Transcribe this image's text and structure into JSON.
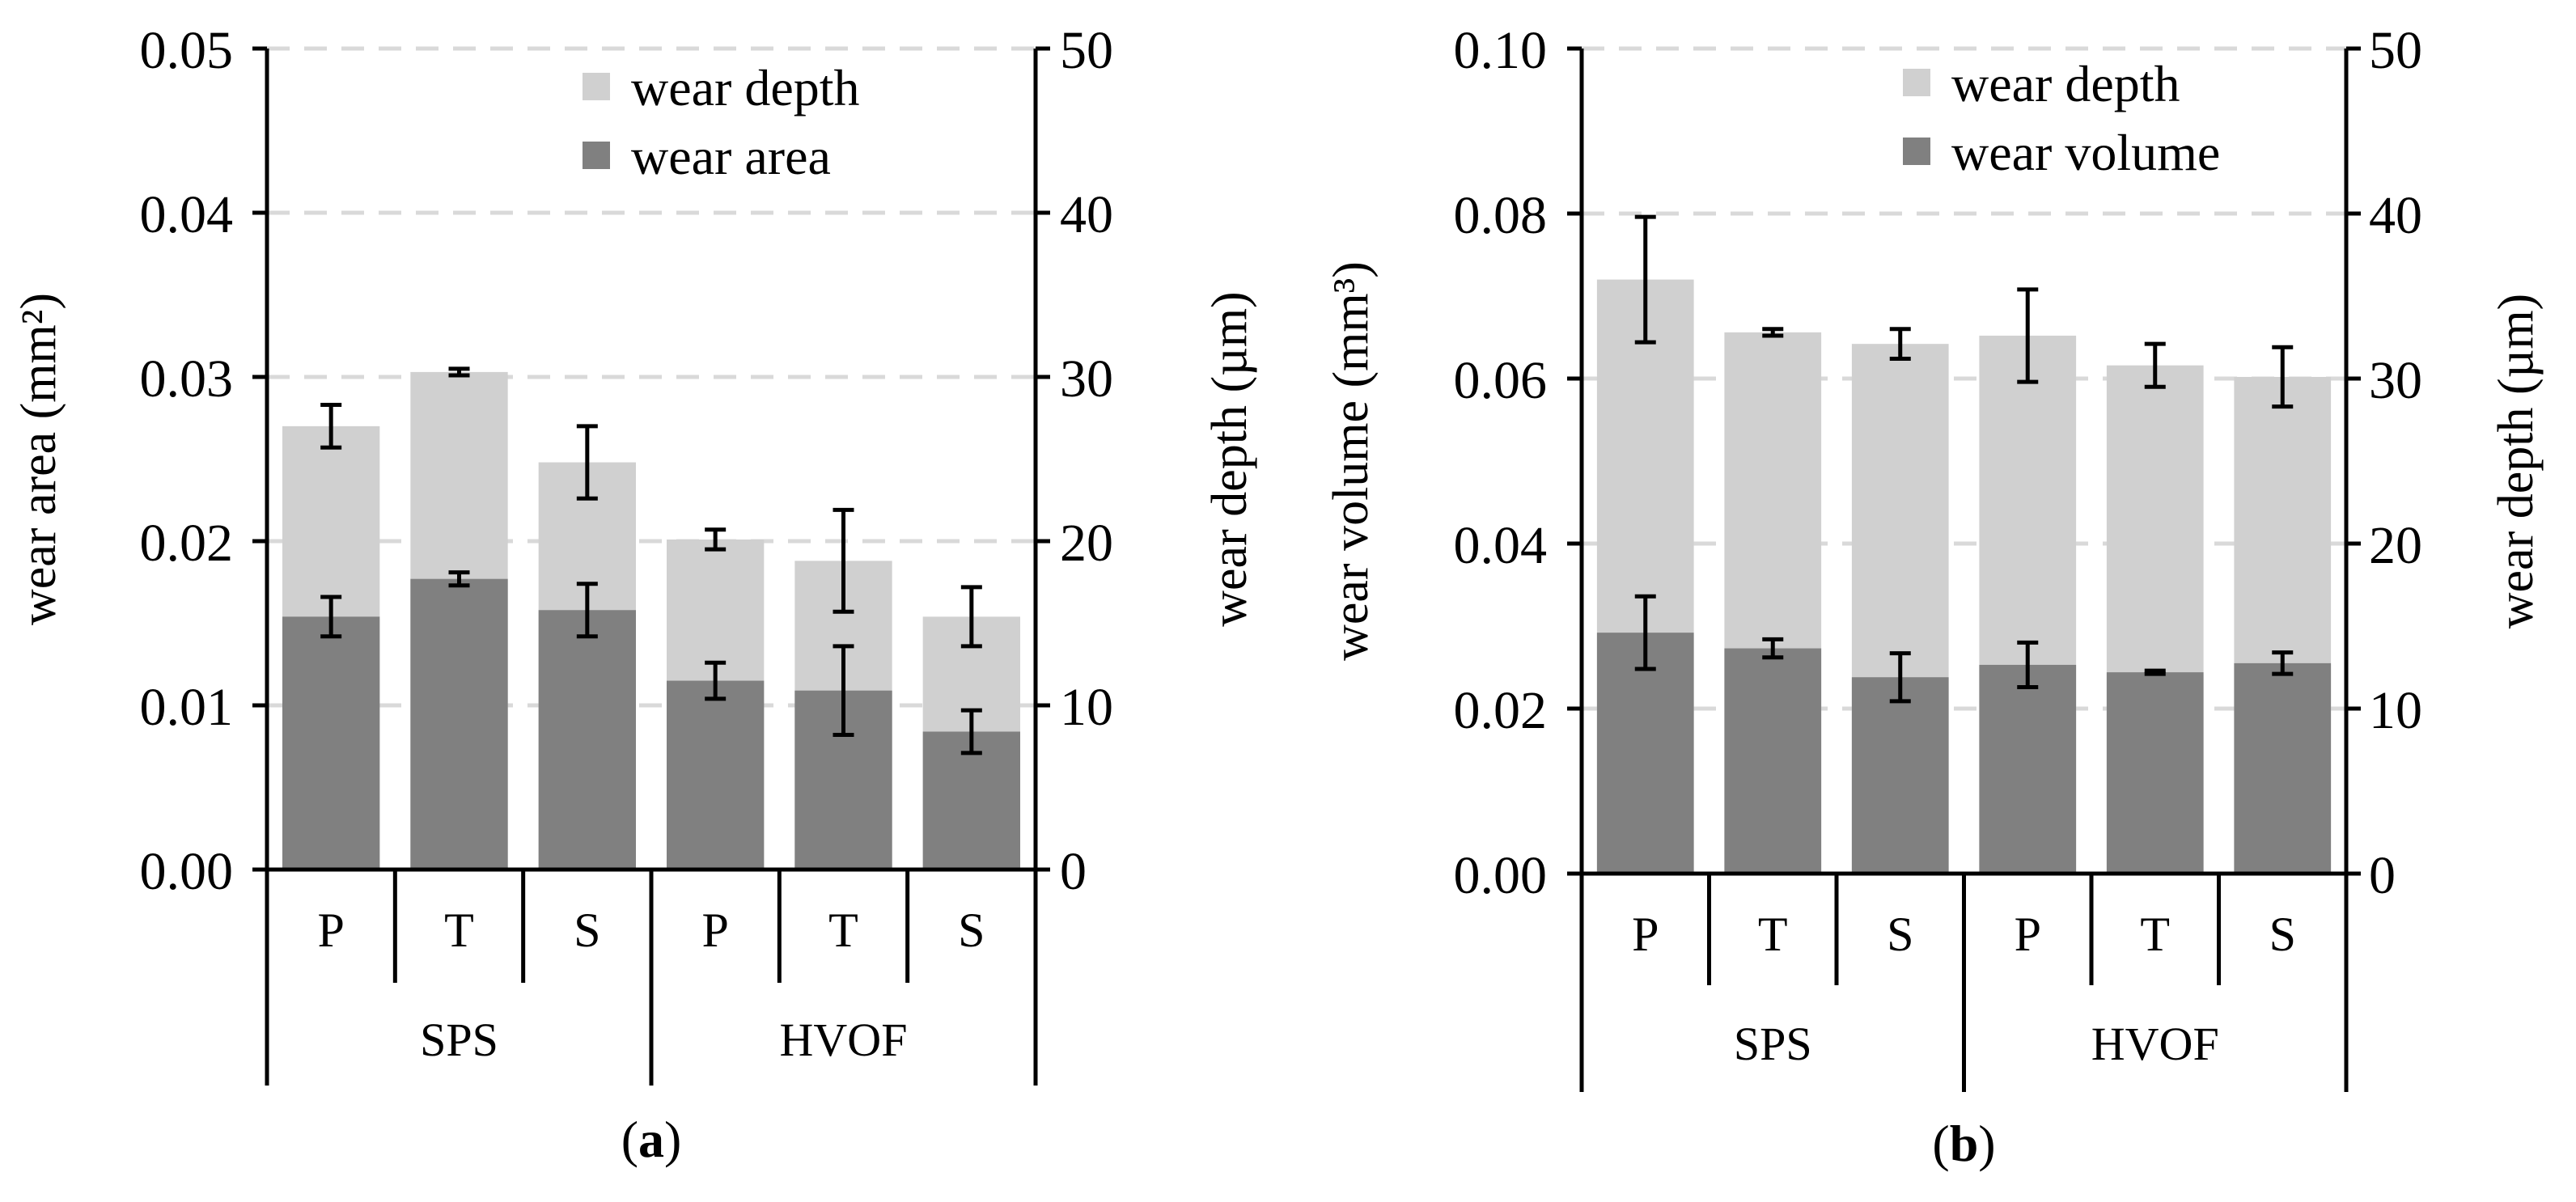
{
  "colors": {
    "wear_depth": "#d0d0d0",
    "wear_primary": "#808080",
    "axis": "#000000",
    "grid": "#d9d9d9"
  },
  "chart_data": [
    {
      "type": "bar",
      "panel_label": "a",
      "categories": [
        "P",
        "T",
        "S",
        "P",
        "T",
        "S"
      ],
      "groups": [
        {
          "name": "SPS",
          "span": [
            0,
            2
          ]
        },
        {
          "name": "HVOF",
          "span": [
            3,
            5
          ]
        }
      ],
      "left_axis": {
        "label": "wear area (mm²)",
        "ylim": [
          0,
          0.05
        ],
        "ticks": [
          0,
          0.01,
          0.02,
          0.03,
          0.04,
          0.05
        ],
        "tick_labels": [
          "0.00",
          "0.01",
          "0.02",
          "0.03",
          "0.04",
          "0.05"
        ]
      },
      "right_axis": {
        "label": "wear depth (µm)",
        "ylim": [
          0,
          50
        ],
        "ticks": [
          0,
          10,
          20,
          30,
          40,
          50
        ],
        "tick_labels": [
          "0",
          "10",
          "20",
          "30",
          "40",
          "50"
        ]
      },
      "series": [
        {
          "name": "wear depth",
          "axis": "right",
          "values": [
            27.0,
            30.3,
            24.8,
            20.1,
            18.8,
            15.4
          ],
          "errors": [
            1.3,
            0.2,
            2.2,
            0.6,
            3.1,
            1.8
          ]
        },
        {
          "name": "wear area",
          "axis": "left",
          "values": [
            0.0154,
            0.0177,
            0.0158,
            0.0115,
            0.0109,
            0.0084
          ],
          "errors": [
            0.0012,
            0.0004,
            0.0016,
            0.0011,
            0.0027,
            0.0013
          ]
        }
      ],
      "legend": [
        "wear depth",
        "wear area"
      ],
      "grid": true,
      "legend_position": "top-right"
    },
    {
      "type": "bar",
      "panel_label": "b",
      "categories": [
        "P",
        "T",
        "S",
        "P",
        "T",
        "S"
      ],
      "groups": [
        {
          "name": "SPS",
          "span": [
            0,
            2
          ]
        },
        {
          "name": "HVOF",
          "span": [
            3,
            5
          ]
        }
      ],
      "left_axis": {
        "label": "wear volume (mm³)",
        "ylim": [
          0,
          0.1
        ],
        "ticks": [
          0,
          0.02,
          0.04,
          0.06,
          0.08,
          0.1
        ],
        "tick_labels": [
          "0.00",
          "0.02",
          "0.04",
          "0.06",
          "0.08",
          "0.10"
        ]
      },
      "right_axis": {
        "label": "wear depth (µm)",
        "ylim": [
          0,
          50
        ],
        "ticks": [
          0,
          10,
          20,
          30,
          40,
          50
        ],
        "tick_labels": [
          "0",
          "10",
          "20",
          "30",
          "40",
          "50"
        ]
      },
      "series": [
        {
          "name": "wear depth",
          "axis": "right",
          "values": [
            36.0,
            32.8,
            32.1,
            32.6,
            30.8,
            30.1
          ],
          "errors": [
            3.8,
            0.2,
            0.9,
            2.8,
            1.3,
            1.8
          ]
        },
        {
          "name": "wear volume",
          "axis": "left",
          "values": [
            0.0292,
            0.0273,
            0.0238,
            0.0253,
            0.0244,
            0.0255
          ],
          "errors": [
            0.0044,
            0.0011,
            0.0029,
            0.0027,
            0.0002,
            0.0013
          ]
        }
      ],
      "legend": [
        "wear depth",
        "wear volume"
      ],
      "grid": true,
      "legend_position": "top-right"
    }
  ]
}
